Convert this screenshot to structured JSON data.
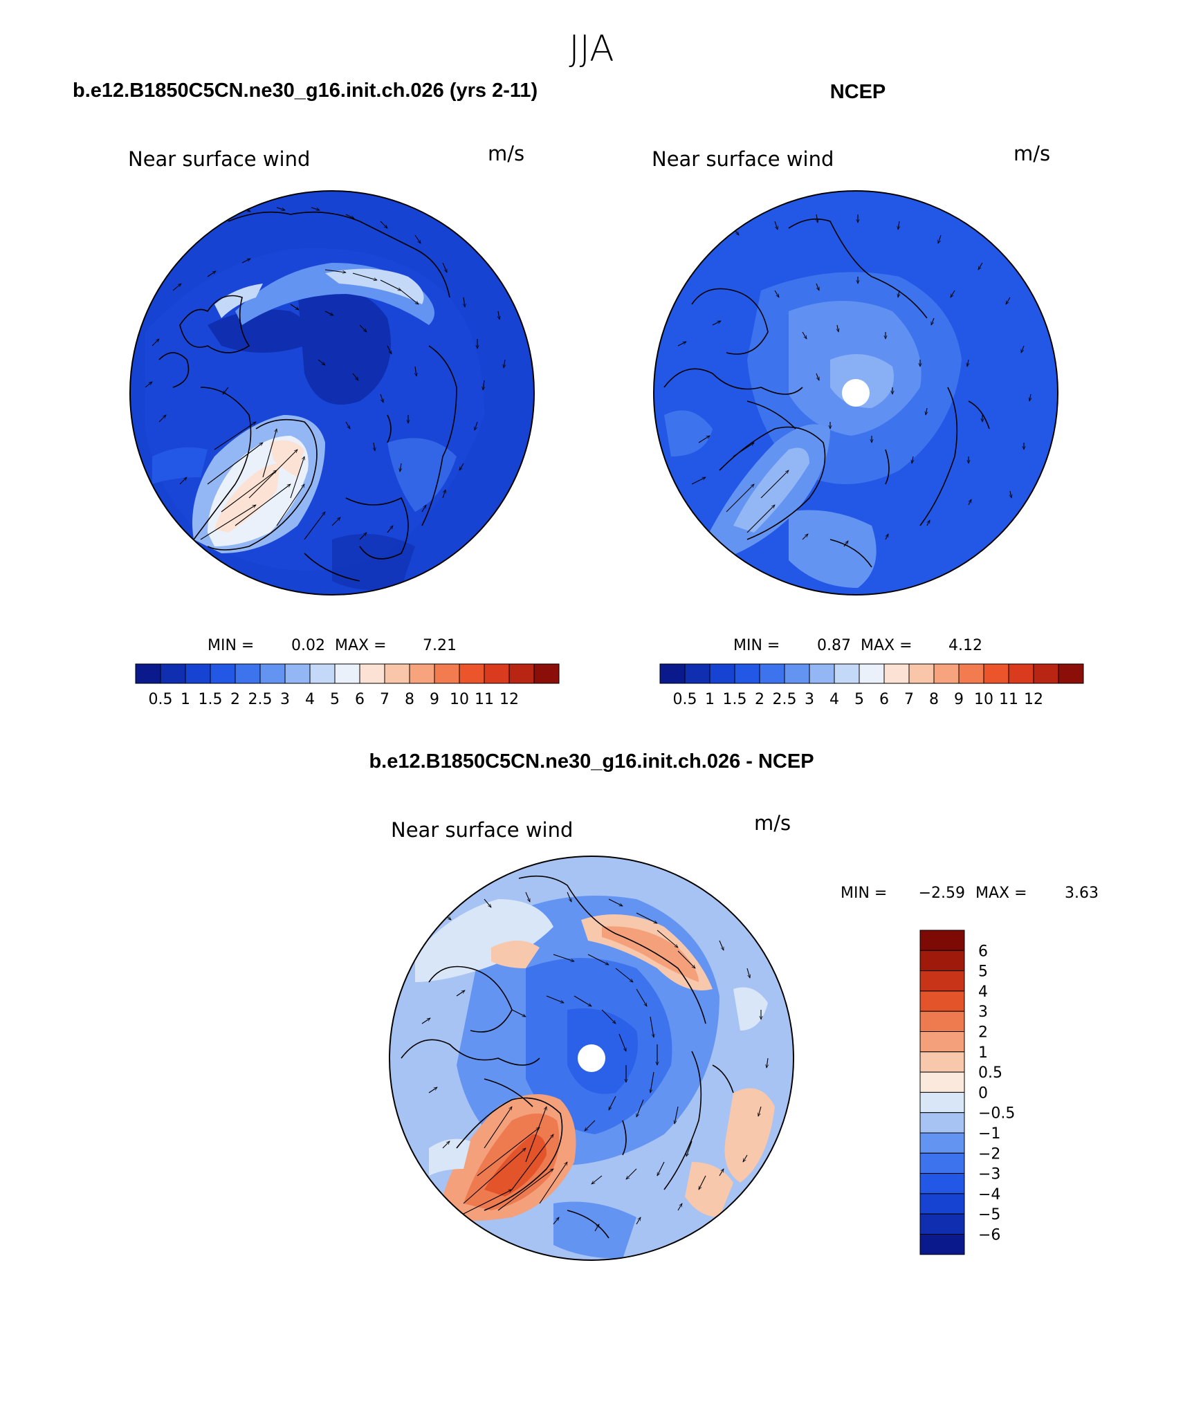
{
  "page_title": "JJA",
  "colors": {
    "seq": [
      "#0a1a8c",
      "#0f2fb0",
      "#1743d2",
      "#2358e6",
      "#3d74ee",
      "#6494f2",
      "#93b6f5",
      "#c4d8f7",
      "#ebf1fb",
      "#fbe2d4",
      "#f9c6aa",
      "#f7a47e",
      "#f27c50",
      "#ec542c",
      "#da3a1d",
      "#b82513",
      "#8b0e08"
    ],
    "diff": [
      "#0a1a8c",
      "#0f2fb0",
      "#1743d2",
      "#2358e6",
      "#3d74ee",
      "#6494f2",
      "#a7c3f3",
      "#d9e6f7",
      "#fbe9de",
      "#f8c8ad",
      "#f4a07a",
      "#ee7a4f",
      "#e3542b",
      "#c73417",
      "#a01a0c",
      "#7d0a05"
    ]
  },
  "panels": [
    {
      "id": "model",
      "heading": "b.e12.B1850C5CN.ne30_g16.init.ch.026 (yrs 2-11)",
      "field": "Near surface wind",
      "units": "m/s",
      "stats": {
        "min_label": "MIN =",
        "min": "0.02",
        "max_label": "MAX =",
        "max": "7.21"
      },
      "colorbar": {
        "levels": [
          "0.5",
          "1",
          "1.5",
          "2",
          "2.5",
          "3",
          "4",
          "5",
          "6",
          "7",
          "8",
          "9",
          "10",
          "11",
          "12"
        ]
      }
    },
    {
      "id": "obs",
      "heading": "NCEP",
      "field": "Near surface wind",
      "units": "m/s",
      "stats": {
        "min_label": "MIN =",
        "min": "0.87",
        "max_label": "MAX =",
        "max": "4.12"
      },
      "colorbar": {
        "levels": [
          "0.5",
          "1",
          "1.5",
          "2",
          "2.5",
          "3",
          "4",
          "5",
          "6",
          "7",
          "8",
          "9",
          "10",
          "11",
          "12"
        ]
      }
    },
    {
      "id": "diff",
      "heading": "b.e12.B1850C5CN.ne30_g16.init.ch.026 - NCEP",
      "field": "Near surface wind",
      "units": "m/s",
      "stats": {
        "min_label": "MIN =",
        "min": "−2.59",
        "max_label": "MAX =",
        "max": "3.63"
      },
      "colorbar": {
        "levels": [
          "6",
          "5",
          "4",
          "3",
          "2",
          "1",
          "0.5",
          "0",
          "−0.5",
          "−1",
          "−2",
          "−3",
          "−4",
          "−5",
          "−6"
        ]
      }
    }
  ]
}
